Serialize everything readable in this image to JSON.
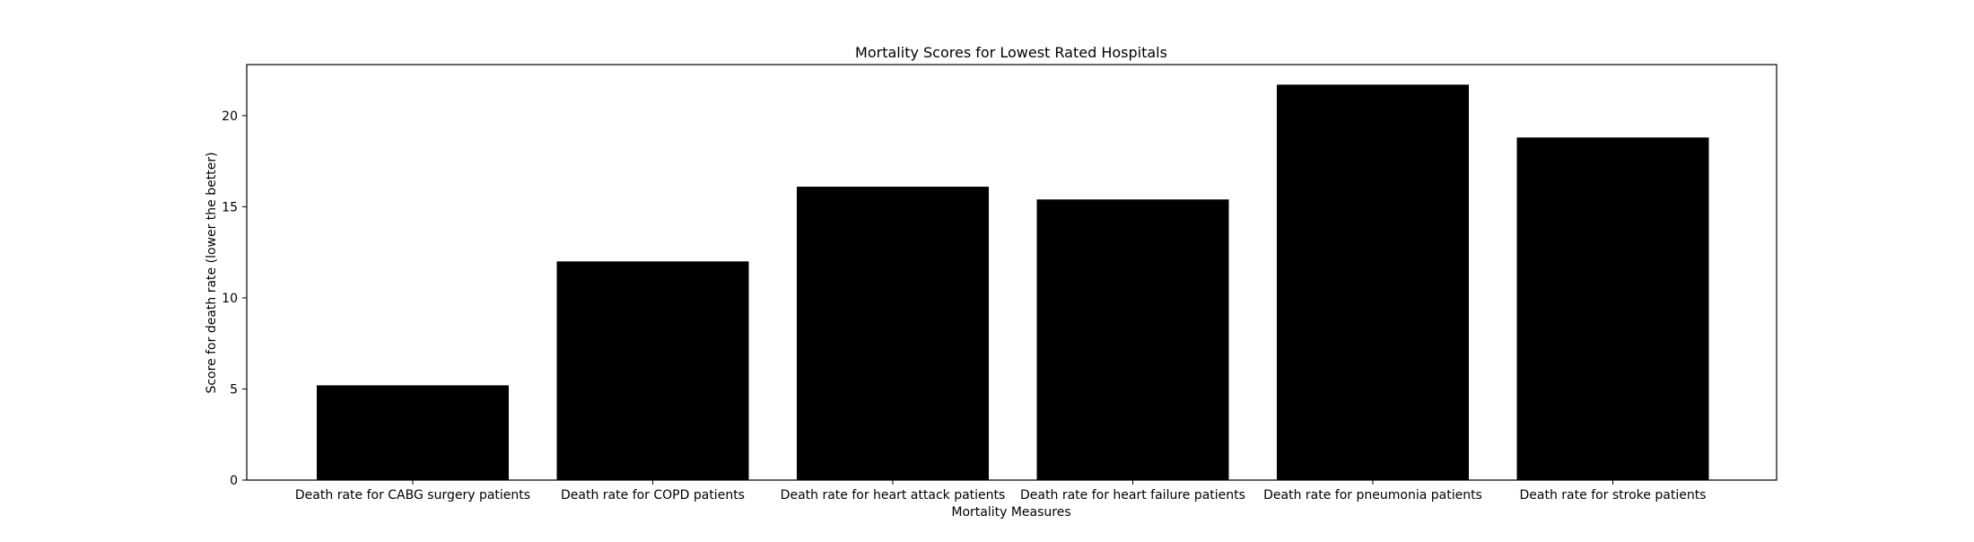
{
  "chart_data": {
    "type": "bar",
    "title": "Mortality Scores for Lowest Rated Hospitals",
    "xlabel": "Mortality Measures",
    "ylabel": "Score for death rate (lower the better)",
    "categories": [
      "Death rate for CABG surgery patients",
      "Death rate for COPD patients",
      "Death rate for heart attack patients",
      "Death rate for heart failure patients",
      "Death rate for pneumonia patients",
      "Death rate for stroke patients"
    ],
    "values": [
      5.2,
      12.0,
      16.1,
      15.4,
      21.7,
      18.8
    ],
    "ylim": [
      0,
      22.8
    ],
    "yticks": [
      0,
      5,
      10,
      15,
      20
    ],
    "ytick_labels": [
      "0",
      "5",
      "10",
      "15",
      "20"
    ],
    "bar_color": "#000000",
    "grid": false
  }
}
